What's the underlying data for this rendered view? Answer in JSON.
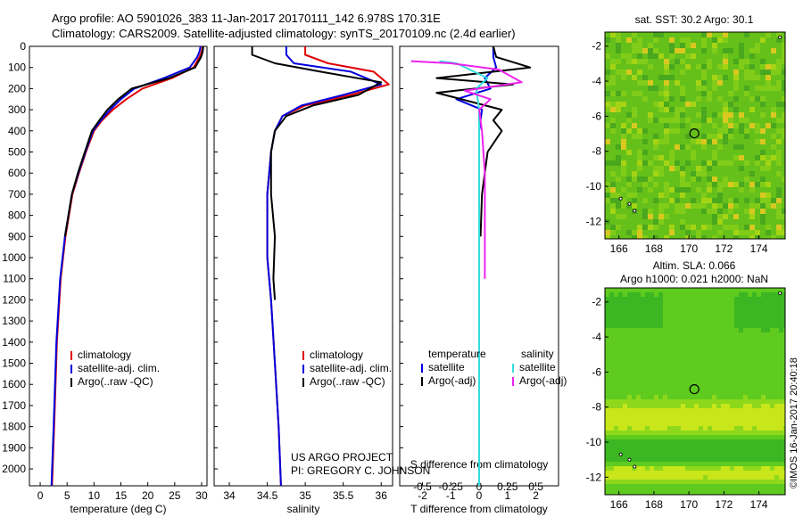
{
  "header": {
    "title_line1": "Argo profile: AO 5901026_383 11-Jan-2017 20170111_142 6.978S 170.31E",
    "title_line2": "Climatology: CARS2009. Satellite-adjusted climatology: synTS_20170109.nc (2.4d earlier)"
  },
  "colors": {
    "climatology": "#e00000",
    "satellite": "#0000dd",
    "argo": "#000000",
    "sat_salinity": "#33dddd",
    "argo_adj_salinity": "#ee22ee"
  },
  "depth_ticks": [
    "0",
    "100",
    "200",
    "300",
    "400",
    "500",
    "600",
    "700",
    "800",
    "900",
    "1000",
    "1100",
    "1200",
    "1300",
    "1400",
    "1500",
    "1600",
    "1700",
    "1800",
    "1900",
    "2000"
  ],
  "chart_data": [
    {
      "type": "line",
      "id": "temperature",
      "xlabel": "temperature (deg C)",
      "xlim": [
        -2,
        31
      ],
      "ylim": [
        2080,
        0
      ],
      "xticks": [
        0,
        5,
        10,
        15,
        20,
        25,
        30
      ],
      "legend": {
        "placement": "bottom-left",
        "entries": [
          "climatology",
          "satellite-adj. clim.",
          "Argo(..raw -QC)"
        ]
      },
      "series": [
        {
          "name": "climatology",
          "color": "#e00000",
          "x": [
            30.2,
            30.0,
            29.6,
            28.5,
            24.5,
            19.0,
            16.0,
            13.5,
            11.5,
            10.0,
            8.5,
            7.2,
            6.0,
            4.7,
            3.8,
            3.1,
            2.6,
            2.2
          ],
          "y": [
            0,
            25,
            50,
            100,
            150,
            200,
            250,
            300,
            350,
            400,
            500,
            600,
            700,
            900,
            1100,
            1400,
            1800,
            2080
          ]
        },
        {
          "name": "satellite-adj. clim.",
          "color": "#0000dd",
          "x": [
            29.8,
            29.6,
            29.2,
            27.8,
            23.0,
            17.5,
            15.0,
            13.0,
            11.3,
            9.8,
            8.4,
            7.1,
            5.9,
            4.6,
            3.7,
            3.0,
            2.5,
            2.1
          ],
          "y": [
            0,
            25,
            50,
            100,
            150,
            200,
            250,
            300,
            350,
            400,
            500,
            600,
            700,
            900,
            1100,
            1400,
            1800,
            2080
          ]
        },
        {
          "name": "Argo(..raw -QC)",
          "color": "#000000",
          "x": [
            30.3,
            30.2,
            29.9,
            28.8,
            24.0,
            17.0,
            14.5,
            12.5,
            11.0,
            9.6,
            8.3,
            7.0,
            5.9,
            4.6
          ],
          "y": [
            0,
            25,
            50,
            100,
            150,
            200,
            250,
            300,
            350,
            400,
            500,
            600,
            700,
            900
          ]
        }
      ]
    },
    {
      "type": "line",
      "id": "salinity",
      "xlabel": "salinity",
      "xlim": [
        33.8,
        36.15
      ],
      "ylim": [
        2080,
        0
      ],
      "xticks": [
        34,
        34.5,
        35,
        35.5,
        36
      ],
      "legend": {
        "placement": "bottom-right",
        "entries": [
          "climatology",
          "satellite-adj. clim.",
          "Argo(..raw -QC)"
        ]
      },
      "annotations": [
        "US ARGO PROJECT",
        "PI: GREGORY C. JOHNSON"
      ],
      "series": [
        {
          "name": "climatology",
          "color": "#e00000",
          "x": [
            35.0,
            35.0,
            35.3,
            35.9,
            36.1,
            35.6,
            35.0,
            34.7,
            34.6,
            34.55,
            34.5,
            34.5,
            34.55,
            34.6,
            34.65,
            34.68
          ],
          "y": [
            0,
            40,
            80,
            120,
            180,
            230,
            280,
            330,
            400,
            500,
            700,
            1000,
            1200,
            1500,
            1800,
            2080
          ]
        },
        {
          "name": "satellite-adj. clim.",
          "color": "#0000dd",
          "x": [
            34.75,
            34.75,
            34.85,
            35.6,
            36.0,
            35.5,
            34.95,
            34.7,
            34.6,
            34.55,
            34.5,
            34.5,
            34.55,
            34.6,
            34.65,
            34.68
          ],
          "y": [
            0,
            40,
            80,
            120,
            180,
            230,
            280,
            330,
            400,
            500,
            700,
            1000,
            1200,
            1500,
            1800,
            2080
          ]
        },
        {
          "name": "Argo(..raw -QC)",
          "color": "#000000",
          "x": [
            34.3,
            34.3,
            34.6,
            35.2,
            36.0,
            35.7,
            35.1,
            34.75,
            34.6,
            34.55,
            34.55,
            34.6,
            34.58,
            34.6
          ],
          "y": [
            0,
            40,
            80,
            120,
            170,
            230,
            280,
            330,
            400,
            500,
            700,
            900,
            1100,
            1200
          ]
        }
      ]
    },
    {
      "type": "line",
      "id": "differences",
      "xlabel": "T difference from climatology",
      "xlabel_top": "S difference from climatology",
      "xlim": [
        -2.8,
        2.8
      ],
      "ylim": [
        2080,
        0
      ],
      "xticks": [
        -2,
        -1,
        0,
        1,
        2
      ],
      "sticks": [
        "-0.5",
        "-0.25",
        "0",
        "0.25",
        "0.5"
      ],
      "legend": {
        "placement": "bottom",
        "temperature_title": "temperature",
        "salinity_title": "salinity",
        "entries": [
          "satellite",
          "Argo(-adj)",
          "satellite",
          "Argo(-adj)"
        ]
      },
      "series": [
        {
          "name": "satellite",
          "color": "#0000dd",
          "x": [
            0.5,
            0.5,
            0.6,
            0.2,
            0.4,
            -0.8,
            0.1,
            0.0,
            0.0,
            0.0,
            0.0
          ],
          "y": [
            0,
            50,
            100,
            150,
            200,
            250,
            300,
            400,
            600,
            1000,
            2080
          ]
        },
        {
          "name": "Argo(-adj)",
          "color": "#000000",
          "x": [
            0.5,
            0.6,
            1.8,
            -1.5,
            1.2,
            -1.5,
            0.8,
            0.5,
            0.8,
            0.3,
            0.1,
            0.05
          ],
          "y": [
            0,
            50,
            100,
            150,
            180,
            220,
            300,
            350,
            400,
            500,
            700,
            900
          ]
        },
        {
          "name": "satellite",
          "color": "#33dddd",
          "x": [
            -1.4,
            -0.8,
            0.3,
            -0.1,
            0.0,
            0.0,
            0.0,
            0.0,
            0.0
          ],
          "y": [
            70,
            80,
            150,
            200,
            300,
            400,
            700,
            1000,
            2080
          ]
        },
        {
          "name": "Argo(-adj)",
          "color": "#ee22ee",
          "x": [
            -2.4,
            -1.0,
            0.7,
            1.5,
            -0.5,
            0.4,
            0.0,
            0.1,
            0.2,
            0.2,
            0.2
          ],
          "y": [
            70,
            80,
            110,
            170,
            210,
            250,
            300,
            400,
            600,
            900,
            1100
          ]
        }
      ]
    },
    {
      "type": "heatmap",
      "id": "sst_map",
      "title": "sat. SST: 30.2  Argo: 30.1",
      "xticks": [
        166,
        168,
        170,
        172,
        174
      ],
      "yticks": [
        -2,
        -4,
        -6,
        -8,
        -10,
        -12
      ],
      "xlim": [
        165.2,
        175.5
      ],
      "ylim": [
        -13,
        -1.2
      ],
      "marker": {
        "lon": 170.31,
        "lat": -6.978
      }
    },
    {
      "type": "heatmap",
      "id": "sla_map",
      "title": "Altim. SLA: 0.066",
      "subtitle": "Argo h1000: 0.021 h2000: NaN",
      "xticks": [
        166,
        168,
        170,
        172,
        174
      ],
      "yticks": [
        -2,
        -4,
        -6,
        -8,
        -10,
        -12
      ],
      "xlim": [
        165.2,
        175.5
      ],
      "ylim": [
        -13,
        -1.2
      ],
      "marker": {
        "lon": 170.31,
        "lat": -6.978
      }
    }
  ],
  "credit": "©IMOS 16-Jan-2017 20:40:18"
}
